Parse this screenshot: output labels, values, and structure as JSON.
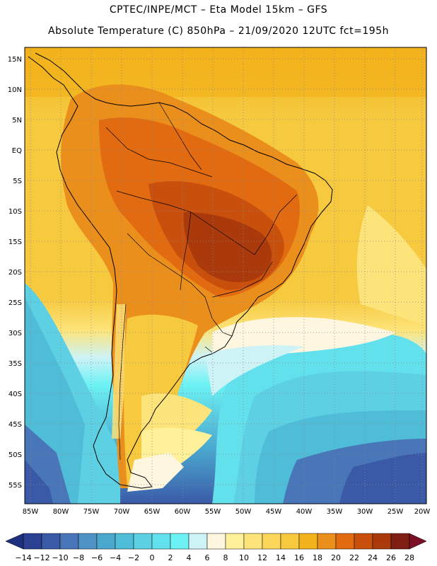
{
  "header": {
    "line1": "CPTEC/INPE/MCT –  Eta Model 15km – GFS",
    "line2": "Absolute Temperature (C) 850hPa – 21/09/2020 12UTC fct=195h"
  },
  "map": {
    "lat_labels": [
      "15N",
      "10N",
      "5N",
      "EQ",
      "5S",
      "10S",
      "15S",
      "20S",
      "25S",
      "30S",
      "35S",
      "40S",
      "45S",
      "50S",
      "55S"
    ],
    "lon_labels": [
      "85W",
      "80W",
      "75W",
      "70W",
      "65W",
      "60W",
      "55W",
      "50W",
      "45W",
      "40W",
      "35W",
      "30W",
      "25W",
      "20W"
    ]
  },
  "colorbar": {
    "labels": [
      "-14",
      "-12",
      "-10",
      "-8",
      "-6",
      "-4",
      "-2",
      "0",
      "2",
      "4",
      "6",
      "8",
      "10",
      "12",
      "14",
      "16",
      "18",
      "20",
      "22",
      "24",
      "26",
      "28"
    ],
    "colors": [
      "#2b3f93",
      "#3a5aa8",
      "#4876b8",
      "#4f93c6",
      "#4aa8cf",
      "#4fbcd8",
      "#5dd0e3",
      "#62e0ec",
      "#6cf2f4",
      "#cdf3f7",
      "#fff6df",
      "#fff09a",
      "#fde47a",
      "#fbd65a",
      "#f6c93f",
      "#f2b21b",
      "#eb8f1c",
      "#e26a10",
      "#c9500c",
      "#aa3a0c",
      "#7f1e12"
    ],
    "under_color": "#1f2f80",
    "over_color": "#7a0f25"
  }
}
